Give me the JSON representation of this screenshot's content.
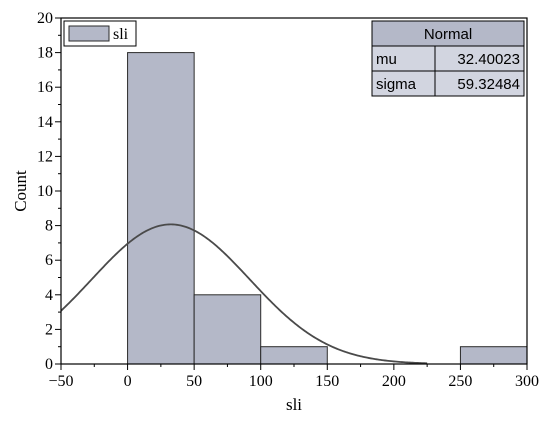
{
  "chart_data": {
    "type": "bar",
    "subtype": "histogram",
    "bins": [
      {
        "x0": 0,
        "x1": 50,
        "count": 18
      },
      {
        "x0": 50,
        "x1": 100,
        "count": 4
      },
      {
        "x0": 100,
        "x1": 150,
        "count": 1
      },
      {
        "x0": 150,
        "x1": 200,
        "count": 0
      },
      {
        "x0": 200,
        "x1": 250,
        "count": 0
      },
      {
        "x0": 250,
        "x1": 300,
        "count": 1
      }
    ],
    "xlabel": "sli",
    "ylabel": "Count",
    "xlim": [
      -50,
      300
    ],
    "ylim": [
      0,
      20
    ],
    "x_ticks": [
      "−50",
      "0",
      "50",
      "100",
      "150",
      "200",
      "250",
      "300"
    ],
    "y_ticks": [
      "0",
      "2",
      "4",
      "6",
      "8",
      "10",
      "12",
      "14",
      "16",
      "18",
      "20"
    ],
    "legend": {
      "label": "sli",
      "position": "top-left"
    },
    "fit": {
      "type": "normal",
      "title": "Normal",
      "params": [
        {
          "name": "mu",
          "value": "32.40023"
        },
        {
          "name": "sigma",
          "value": "59.32484"
        }
      ],
      "mu": 32.40023,
      "sigma": 59.32484,
      "x_end": 225
    },
    "colors": {
      "bar_fill": "#b4b8c8",
      "bar_stroke": "#2a2a2a",
      "curve": "#4a4a4a",
      "table_header": "#b4b8c8",
      "table_cell": "#d2d5e0"
    }
  }
}
